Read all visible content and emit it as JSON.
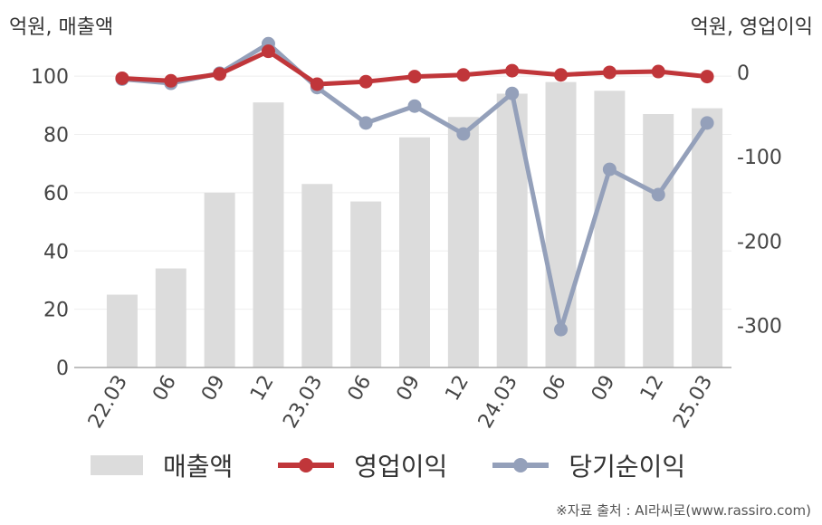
{
  "units": {
    "left": "억원, 매출액",
    "right": "억원, 영업이익"
  },
  "legend": [
    {
      "label": "매출액",
      "color": "#dcdcdc",
      "kind": "bar"
    },
    {
      "label": "영업이익",
      "color": "#c0363a",
      "kind": "line"
    },
    {
      "label": "당기순이익",
      "color": "#94a0ba",
      "kind": "line"
    }
  ],
  "source": "※자료 출처 : AI라씨로(www.rassiro.com)",
  "chart_data": {
    "type": "bar",
    "categories": [
      "22.03",
      "06",
      "09",
      "12",
      "23.03",
      "06",
      "09",
      "12",
      "24.03",
      "06",
      "09",
      "12",
      "25.03"
    ],
    "y_left": {
      "ticks": [
        0,
        20,
        40,
        60,
        80,
        100
      ],
      "range": [
        0,
        110
      ]
    },
    "y_right": {
      "ticks": [
        0,
        -100,
        -200,
        -300
      ],
      "range": [
        -350,
        30
      ]
    },
    "grid": true,
    "legend_position": "bottom",
    "series": [
      {
        "name": "매출액",
        "type": "bar",
        "axis": "left",
        "color": "#dcdcdc",
        "values": [
          25,
          34,
          60,
          91,
          63,
          57,
          79,
          86,
          94,
          98,
          95,
          87,
          89
        ]
      },
      {
        "name": "영업이익",
        "type": "line",
        "axis": "right",
        "color": "#c0363a",
        "values": [
          -7,
          -10,
          -2,
          25,
          -14,
          -11,
          -5,
          -3,
          2,
          -3,
          0,
          1,
          -5
        ]
      },
      {
        "name": "당기순이익",
        "type": "line",
        "axis": "right",
        "color": "#94a0ba",
        "values": [
          -8,
          -13,
          -1,
          34,
          -18,
          -60,
          -40,
          -73,
          -25,
          -305,
          -115,
          -145,
          -60
        ]
      }
    ]
  }
}
